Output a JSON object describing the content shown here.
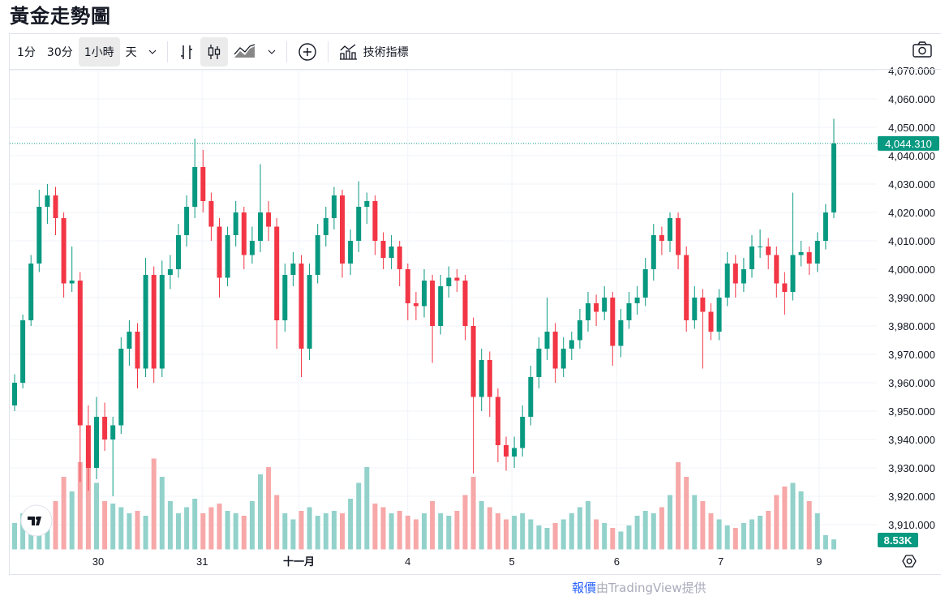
{
  "page_title": "黃金走勢圖",
  "toolbar": {
    "intervals": [
      "1分",
      "30分",
      "1小時",
      "天"
    ],
    "active_interval": "1小時",
    "indicators_label": "技術指標"
  },
  "footer": {
    "link": "報價",
    "text": "由TradingView提供"
  },
  "colors": {
    "up": "#089981",
    "down": "#f23645",
    "up_volume": "#92d2cb",
    "down_volume": "#f7a8a9"
  },
  "chart_data": {
    "type": "candlestick",
    "title": "黃金走勢圖",
    "ylim": [
      3905,
      4073
    ],
    "y_ticks": [
      4070,
      4060,
      4050,
      4040,
      4030,
      4020,
      4010,
      4000,
      3990,
      3980,
      3970,
      3960,
      3950,
      3940,
      3930,
      3920,
      3910
    ],
    "y_tick_labels": [
      "4,070.000",
      "4,060.000",
      "4,050.000",
      "4,040.000",
      "4,030.000",
      "4,020.000",
      "4,010.000",
      "4,000.000",
      "3,990.000",
      "3,980.000",
      "3,970.000",
      "3,960.000",
      "3,950.000",
      "3,940.000",
      "3,930.000",
      "3,920.000",
      "3,910.000"
    ],
    "x_ticks": [
      {
        "label": "30",
        "candle_index": 10.2,
        "bold": false
      },
      {
        "label": "31",
        "candle_index": 22.9,
        "bold": false
      },
      {
        "label": "十一月",
        "candle_index": 34.7,
        "bold": true
      },
      {
        "label": "4",
        "candle_index": 48,
        "bold": false
      },
      {
        "label": "5",
        "candle_index": 60.7,
        "bold": false
      },
      {
        "label": "6",
        "candle_index": 73.5,
        "bold": false
      },
      {
        "label": "7",
        "candle_index": 86.2,
        "bold": false
      },
      {
        "label": "9",
        "candle_index": 98.2,
        "bold": false
      }
    ],
    "last_price": 4044.31,
    "last_price_label": "4,044.310",
    "last_volume_label": "8.53K",
    "volume_max": 80,
    "ohlc": [
      [
        3952,
        3963,
        3950,
        3960
      ],
      [
        3960,
        3984,
        3958,
        3982
      ],
      [
        3982,
        4005,
        3980,
        4002
      ],
      [
        4002,
        4028,
        3999,
        4022
      ],
      [
        4022,
        4030,
        4016,
        4026
      ],
      [
        4026,
        4029,
        4012,
        4018
      ],
      [
        4018,
        4020,
        3990,
        3995
      ],
      [
        3995,
        4008,
        3992,
        3996
      ],
      [
        3996,
        3999,
        3925,
        3945
      ],
      [
        3945,
        3952,
        3922,
        3930
      ],
      [
        3930,
        3955,
        3926,
        3948
      ],
      [
        3948,
        3953,
        3936,
        3940
      ],
      [
        3940,
        3948,
        3920,
        3945
      ],
      [
        3945,
        3976,
        3942,
        3972
      ],
      [
        3972,
        3982,
        3966,
        3978
      ],
      [
        3978,
        3981,
        3958,
        3965
      ],
      [
        3965,
        4004,
        3962,
        3998
      ],
      [
        3998,
        4001,
        3960,
        3965
      ],
      [
        3965,
        4003,
        3962,
        3998
      ],
      [
        3998,
        4005,
        3993,
        4000
      ],
      [
        4000,
        4016,
        3997,
        4012
      ],
      [
        4012,
        4026,
        4008,
        4022
      ],
      [
        4022,
        4046,
        4018,
        4036
      ],
      [
        4036,
        4042,
        4020,
        4024
      ],
      [
        4024,
        4027,
        4010,
        4015
      ],
      [
        4015,
        4018,
        3990,
        3997
      ],
      [
        3997,
        4015,
        3994,
        4012
      ],
      [
        4012,
        4024,
        4008,
        4020
      ],
      [
        4020,
        4022,
        4000,
        4005
      ],
      [
        4005,
        4015,
        4002,
        4010
      ],
      [
        4010,
        4037,
        4006,
        4020
      ],
      [
        4020,
        4024,
        4010,
        4015
      ],
      [
        4015,
        4018,
        3972,
        3982
      ],
      [
        3982,
        4002,
        3978,
        3998
      ],
      [
        3998,
        4006,
        3994,
        4002
      ],
      [
        4002,
        4005,
        3962,
        3972
      ],
      [
        3972,
        4002,
        3968,
        3998
      ],
      [
        3998,
        4016,
        3995,
        4012
      ],
      [
        4012,
        4022,
        4008,
        4018
      ],
      [
        4018,
        4029,
        4014,
        4026
      ],
      [
        4026,
        4028,
        3997,
        4002
      ],
      [
        4002,
        4014,
        3998,
        4010
      ],
      [
        4010,
        4031,
        4006,
        4022
      ],
      [
        4022,
        4027,
        4016,
        4024
      ],
      [
        4024,
        4026,
        4005,
        4010
      ],
      [
        4010,
        4013,
        4000,
        4004
      ],
      [
        4004,
        4012,
        4000,
        4008
      ],
      [
        4008,
        4010,
        3994,
        4000
      ],
      [
        4000,
        4002,
        3982,
        3988
      ],
      [
        3988,
        3992,
        3982,
        3987
      ],
      [
        3987,
        4000,
        3983,
        3996
      ],
      [
        3996,
        3998,
        3967,
        3980
      ],
      [
        3980,
        3998,
        3977,
        3994
      ],
      [
        3994,
        4001,
        3990,
        3997
      ],
      [
        3997,
        4000,
        3992,
        3996
      ],
      [
        3996,
        3998,
        3975,
        3980
      ],
      [
        3980,
        3983,
        3928,
        3955
      ],
      [
        3955,
        3972,
        3950,
        3968
      ],
      [
        3968,
        3971,
        3948,
        3955
      ],
      [
        3955,
        3958,
        3932,
        3938
      ],
      [
        3938,
        3941,
        3929,
        3934
      ],
      [
        3934,
        3941,
        3930,
        3937
      ],
      [
        3937,
        3952,
        3934,
        3948
      ],
      [
        3948,
        3966,
        3945,
        3962
      ],
      [
        3962,
        3976,
        3958,
        3972
      ],
      [
        3972,
        3990,
        3968,
        3978
      ],
      [
        3978,
        3981,
        3960,
        3965
      ],
      [
        3965,
        3976,
        3962,
        3972
      ],
      [
        3972,
        3978,
        3968,
        3975
      ],
      [
        3975,
        3986,
        3972,
        3982
      ],
      [
        3982,
        3992,
        3978,
        3988
      ],
      [
        3988,
        3991,
        3980,
        3985
      ],
      [
        3985,
        3994,
        3982,
        3990
      ],
      [
        3990,
        3992,
        3966,
        3973
      ],
      [
        3973,
        3986,
        3969,
        3982
      ],
      [
        3982,
        3992,
        3979,
        3988
      ],
      [
        3988,
        3994,
        3984,
        3990
      ],
      [
        3990,
        4004,
        3987,
        4000
      ],
      [
        4000,
        4016,
        3996,
        4012
      ],
      [
        4012,
        4015,
        4005,
        4010
      ],
      [
        4010,
        4020,
        4006,
        4018
      ],
      [
        4018,
        4020,
        4000,
        4005
      ],
      [
        4005,
        4008,
        3978,
        3982
      ],
      [
        3982,
        3994,
        3979,
        3990
      ],
      [
        3990,
        3993,
        3965,
        3985
      ],
      [
        3985,
        3988,
        3975,
        3978
      ],
      [
        3978,
        3993,
        3975,
        3990
      ],
      [
        3990,
        4006,
        3987,
        4002
      ],
      [
        4002,
        4005,
        3990,
        3995
      ],
      [
        3995,
        4004,
        3992,
        4000
      ],
      [
        4000,
        4012,
        3997,
        4008
      ],
      [
        4008,
        4014,
        4004,
        4008
      ],
      [
        4008,
        4011,
        4000,
        4005
      ],
      [
        4005,
        4008,
        3990,
        3995
      ],
      [
        3995,
        3999,
        3984,
        3992
      ],
      [
        3992,
        4027,
        3989,
        4005
      ],
      [
        4005,
        4010,
        4001,
        4006
      ],
      [
        4006,
        4008,
        3998,
        4002
      ],
      [
        4002,
        4013,
        3999,
        4010
      ],
      [
        4010,
        4023,
        4007,
        4020
      ],
      [
        4020,
        4053,
        4018,
        4044.31
      ]
    ],
    "volume_k": [
      22,
      30,
      28,
      32,
      25,
      40,
      60,
      48,
      72,
      78,
      55,
      40,
      38,
      35,
      30,
      32,
      28,
      75,
      60,
      40,
      30,
      35,
      42,
      30,
      35,
      38,
      32,
      30,
      28,
      40,
      62,
      68,
      45,
      30,
      25,
      32,
      35,
      28,
      30,
      32,
      30,
      42,
      55,
      68,
      38,
      35,
      30,
      32,
      28,
      25,
      30,
      40,
      30,
      28,
      32,
      45,
      60,
      40,
      35,
      30,
      25,
      28,
      30,
      25,
      20,
      18,
      22,
      25,
      30,
      35,
      40,
      25,
      22,
      18,
      15,
      20,
      28,
      32,
      30,
      35,
      45,
      72,
      60,
      45,
      40,
      30,
      25,
      20,
      18,
      22,
      25,
      28,
      32,
      45,
      52,
      55,
      48,
      40,
      30,
      12,
      8.53
    ]
  }
}
